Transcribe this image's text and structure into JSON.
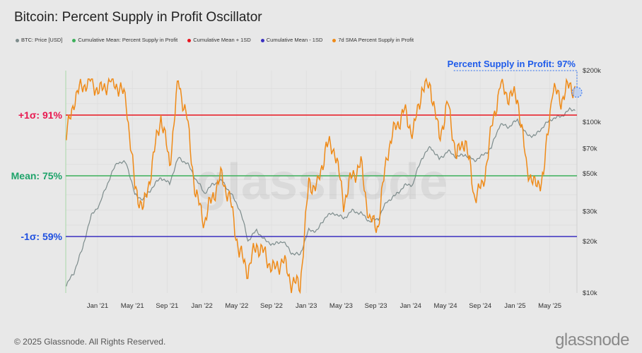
{
  "title": "Bitcoin: Percent Supply in Profit Oscillator",
  "legend": [
    {
      "label": "BTC: Price [USD]",
      "color": "#7d8c8c"
    },
    {
      "label": "Cumulative Mean: Percent Supply in Profit",
      "color": "#3cb05a"
    },
    {
      "label": "Cumulative Mean + 1SD",
      "color": "#e8141e"
    },
    {
      "label": "Cumulative Mean - 1SD",
      "color": "#3a2fc0"
    },
    {
      "label": "7d SMA Percent Supply in Profit",
      "color": "#ef8a17"
    }
  ],
  "annotation": "Percent Supply in Profit: 97%",
  "levels": {
    "plus1sd": {
      "label": "+1σ: 91%",
      "value": 91,
      "color": "#e8174f"
    },
    "mean": {
      "label": "Mean: 75%",
      "value": 75,
      "color": "#1ea36a"
    },
    "minus1sd": {
      "label": "-1σ: 59%",
      "value": 59,
      "color": "#1e4fe0"
    }
  },
  "watermark": "glassnode",
  "footer": "© 2025 Glassnode. All Rights Reserved.",
  "logo": "glassnode",
  "chart_data": {
    "type": "line",
    "title": "Bitcoin: Percent Supply in Profit Oscillator",
    "x_start": "2020-09",
    "x_ticks": [
      "Jan '21",
      "May '21",
      "Sep '21",
      "Jan '22",
      "May '22",
      "Sep '22",
      "Jan '23",
      "May '23",
      "Sep '23",
      "Jan '24",
      "May '24",
      "Sep '24",
      "Jan '25",
      "May '25"
    ],
    "y_right_ticks": [
      "$200k",
      "$100k",
      "$70k",
      "$50k",
      "$30k",
      "$20k",
      "$10k"
    ],
    "y_right_scale": "log",
    "y_right_range": [
      10000,
      200000
    ],
    "series": [
      {
        "name": "BTC: Price [USD]",
        "axis": "right",
        "values": [
          10700,
          13000,
          18000,
          28000,
          33000,
          45000,
          58000,
          57000,
          37000,
          35000,
          41000,
          47000,
          43000,
          61000,
          57000,
          46000,
          38000,
          43000,
          45000,
          38000,
          31000,
          20000,
          23000,
          20000,
          19000,
          20000,
          17000,
          16500,
          23000,
          23000,
          28000,
          29000,
          27000,
          30000,
          29000,
          26000,
          27000,
          34000,
          37000,
          42000,
          43000,
          61000,
          71000,
          60000,
          67000,
          62000,
          64000,
          59000,
          63000,
          70000,
          96000,
          93000,
          102000,
          84000,
          82000,
          94000,
          104000,
          107000,
          117000,
          118000
        ]
      },
      {
        "name": "7d SMA Percent Supply in Profit",
        "axis": "left",
        "unit": "%",
        "values": [
          84,
          95,
          99,
          100,
          97,
          100,
          99,
          95,
          72,
          66,
          78,
          91,
          78,
          100,
          90,
          70,
          63,
          70,
          75,
          68,
          55,
          50,
          57,
          54,
          50,
          53,
          47,
          46,
          73,
          72,
          83,
          82,
          68,
          75,
          78,
          63,
          62,
          81,
          88,
          92,
          86,
          98,
          99,
          85,
          94,
          80,
          85,
          70,
          72,
          87,
          99,
          96,
          96,
          78,
          72,
          75,
          98,
          95,
          99,
          97
        ]
      },
      {
        "name": "Cumulative Mean: Percent Supply in Profit",
        "axis": "left",
        "constant": 75
      },
      {
        "name": "Cumulative Mean + 1SD",
        "axis": "left",
        "constant": 91
      },
      {
        "name": "Cumulative Mean - 1SD",
        "axis": "left",
        "constant": 59
      }
    ]
  }
}
